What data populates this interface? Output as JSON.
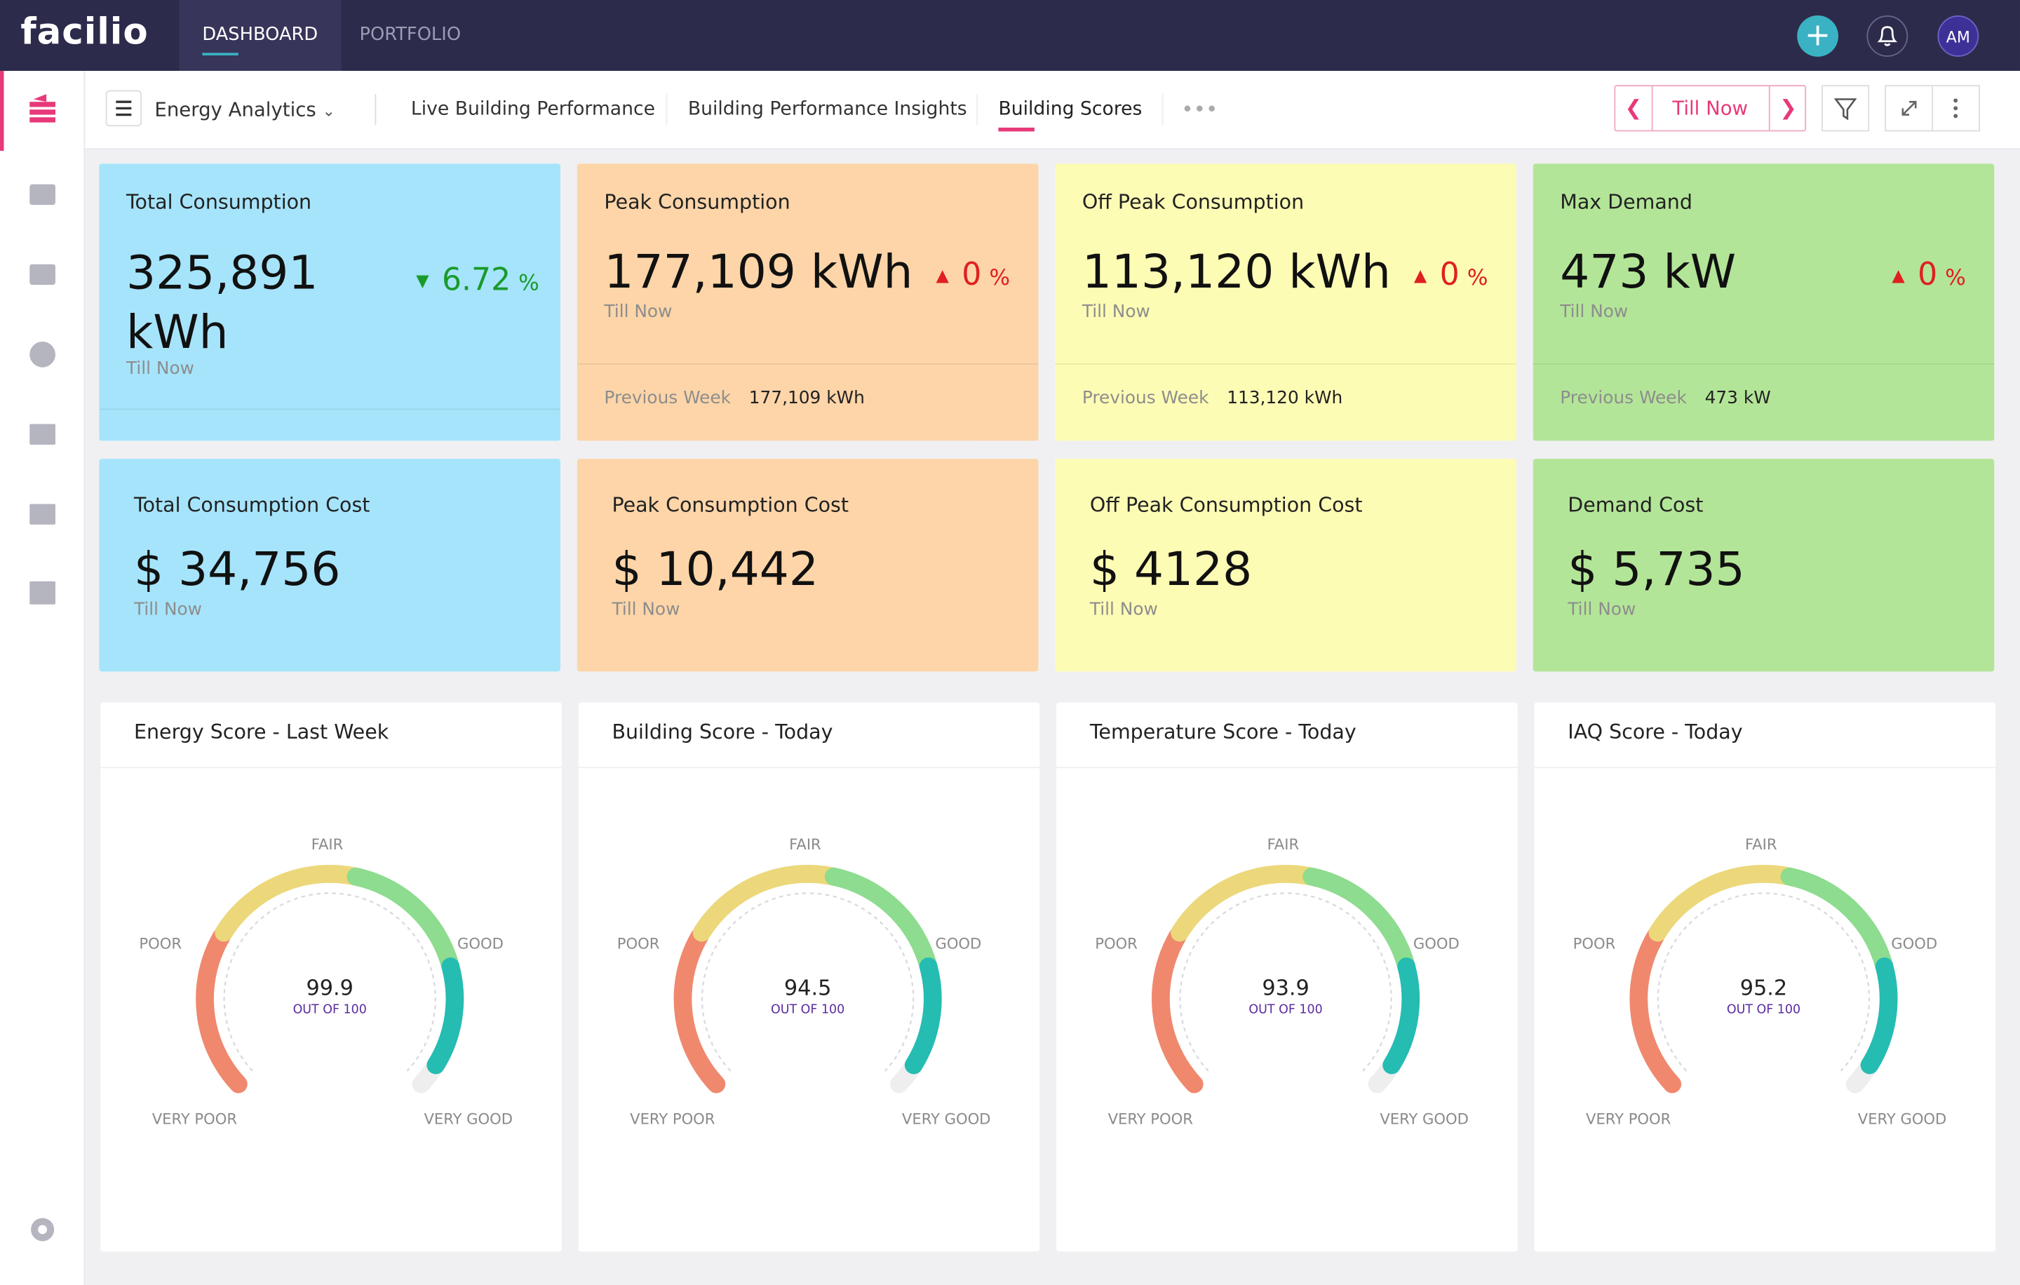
{
  "header": {
    "logo": "facilio",
    "tabs": [
      "DASHBOARD",
      "PORTFOLIO"
    ],
    "avatar": "AM"
  },
  "toolbar": {
    "dashboard": "Energy Analytics",
    "tabs": [
      "Live Building Performance",
      "Building Performance Insights",
      "Building Scores"
    ],
    "period": "Till Now"
  },
  "kpi_cards": [
    {
      "title": "Total Consumption",
      "value": "325,891 kWh",
      "change": "6.72",
      "change_unit": "%",
      "period": "Till Now"
    },
    {
      "title": "Peak Consumption",
      "value": "177,109 kWh",
      "change": "0",
      "change_unit": "%",
      "period": "Till Now",
      "previous_label": "Previous Week",
      "previous_value": "177,109 kWh"
    },
    {
      "title": "Off Peak Consumption",
      "value": "113,120 kWh",
      "change": "0",
      "change_unit": "%",
      "period": "Till Now",
      "previous_label": "Previous Week",
      "previous_value": "113,120 kWh"
    },
    {
      "title": "Max Demand",
      "value": "473 kW",
      "change": "0",
      "change_unit": "%",
      "period": "Till Now",
      "previous_label": "Previous Week",
      "previous_value": "473 kW"
    }
  ],
  "cost_cards": [
    {
      "title": "Total Consumption Cost",
      "value": "$ 34,756",
      "period": "Till Now"
    },
    {
      "title": "Peak Consumption Cost",
      "value": "$ 10,442",
      "period": "Till Now"
    },
    {
      "title": "Off Peak Consumption Cost",
      "value": "$ 4128",
      "period": "Till Now"
    },
    {
      "title": "Demand Cost",
      "value": "$ 5,735",
      "period": "Till Now"
    }
  ],
  "gauge_labels": {
    "poor": "POOR",
    "fair": "FAIR",
    "good": "GOOD",
    "very_poor": "VERY POOR",
    "very_good": "VERY GOOD",
    "out_of": "OUT OF 100"
  },
  "score_cards": [
    {
      "title": "Energy Score - Last Week",
      "score": "99.9"
    },
    {
      "title": "Building Score - Today",
      "score": "94.5"
    },
    {
      "title": "Temperature Score - Today",
      "score": "93.9"
    },
    {
      "title": "IAQ Score - Today",
      "score": "95.2"
    }
  ]
}
